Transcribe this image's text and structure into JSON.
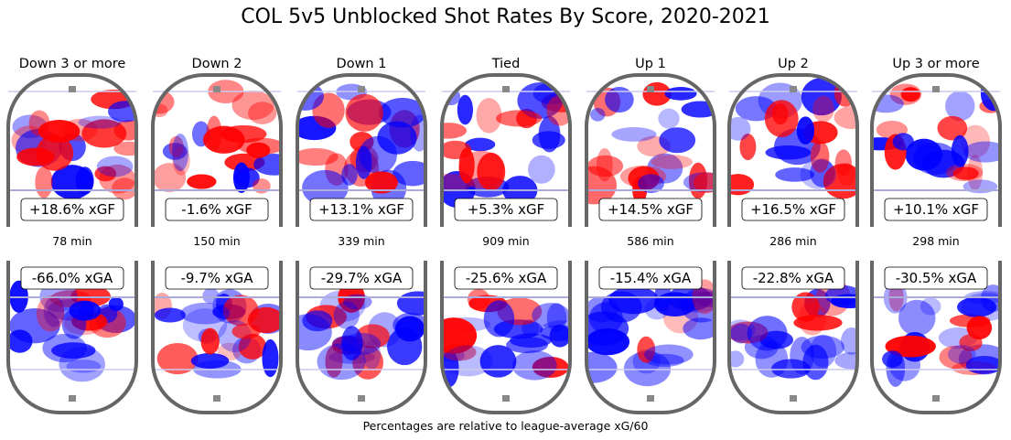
{
  "chart_data": {
    "type": "heatmap",
    "title": "COL 5v5 Unblocked Shot Rates By Score, 2020-2021",
    "footnote": "Percentages are relative to league-average xG/60",
    "colors": {
      "above_average": "#ff0000",
      "below_average": "#0000ff",
      "rink_outline": "#666666"
    },
    "panels": [
      {
        "label": "Down 3 or more",
        "minutes": "78 min",
        "xgf": "+18.6% xGF",
        "xga": "-66.0% xGA"
      },
      {
        "label": "Down 2",
        "minutes": "150 min",
        "xgf": "-1.6% xGF",
        "xga": "-9.7% xGA"
      },
      {
        "label": "Down 1",
        "minutes": "339 min",
        "xgf": "+13.1% xGF",
        "xga": "-29.7% xGA"
      },
      {
        "label": "Tied",
        "minutes": "909 min",
        "xgf": "+5.3% xGF",
        "xga": "-25.6% xGA"
      },
      {
        "label": "Up 1",
        "minutes": "586 min",
        "xgf": "+14.5% xGF",
        "xga": "-15.4% xGA"
      },
      {
        "label": "Up 2",
        "minutes": "286 min",
        "xgf": "+16.5% xGF",
        "xga": "-22.8% xGA"
      },
      {
        "label": "Up 3 or more",
        "minutes": "298 min",
        "xgf": "+10.1% xGF",
        "xga": "-30.5% xGA"
      }
    ]
  }
}
